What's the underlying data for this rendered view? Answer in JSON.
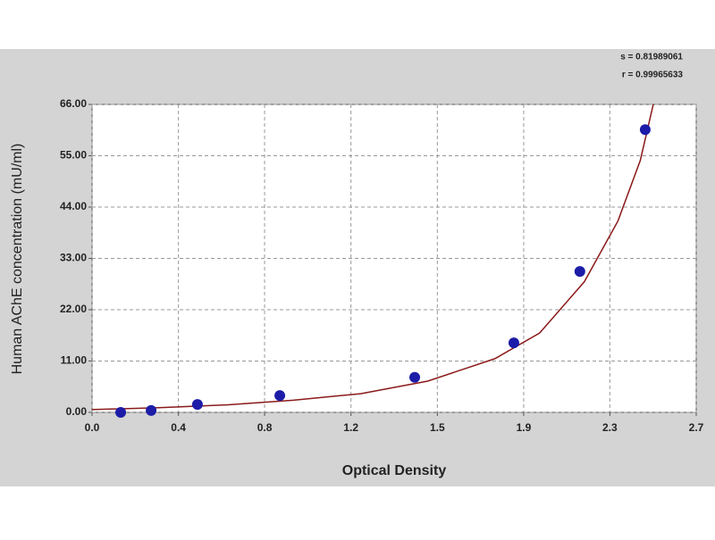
{
  "chart_data": {
    "type": "scatter",
    "x_label": "Optical Density",
    "y_label": "Human AChE concentration (mU/ml)",
    "annotations": [
      "s = 0.81989061",
      "r = 0.99965633"
    ],
    "xlim": [
      0,
      2.7
    ],
    "ylim": [
      0,
      66
    ],
    "xticks": [
      {
        "value": 0,
        "label": "0.0"
      },
      {
        "value": 0.386,
        "label": "0.4"
      },
      {
        "value": 0.771,
        "label": "0.8"
      },
      {
        "value": 1.157,
        "label": "1.2"
      },
      {
        "value": 1.543,
        "label": "1.5"
      },
      {
        "value": 1.929,
        "label": "1.9"
      },
      {
        "value": 2.314,
        "label": "2.3"
      },
      {
        "value": 2.7,
        "label": "2.7"
      }
    ],
    "yticks": [
      {
        "value": 0,
        "label": "0.00"
      },
      {
        "value": 11,
        "label": "11.00"
      },
      {
        "value": 22,
        "label": "22.00"
      },
      {
        "value": 33,
        "label": "33.00"
      },
      {
        "value": 44,
        "label": "44.00"
      },
      {
        "value": 55,
        "label": "55.00"
      },
      {
        "value": 66,
        "label": "66.00"
      }
    ],
    "grid": true,
    "series": [
      {
        "kind": "points",
        "color": "#1c1ca8",
        "x": [
          0.128,
          0.264,
          0.471,
          0.839,
          1.442,
          1.885,
          2.18,
          2.472
        ],
        "values": [
          0,
          0.4,
          1.7,
          3.6,
          7.5,
          14.9,
          30.2,
          60.6
        ]
      },
      {
        "kind": "curve",
        "color": "#8b1a1a",
        "x": [
          0,
          0.3,
          0.6,
          0.9,
          1.2,
          1.5,
          1.8,
          2.0,
          2.2,
          2.35,
          2.45,
          2.508
        ],
        "values": [
          0.6,
          1.0,
          1.6,
          2.6,
          4.0,
          6.7,
          11.5,
          17,
          28,
          41,
          54,
          66
        ]
      }
    ]
  }
}
